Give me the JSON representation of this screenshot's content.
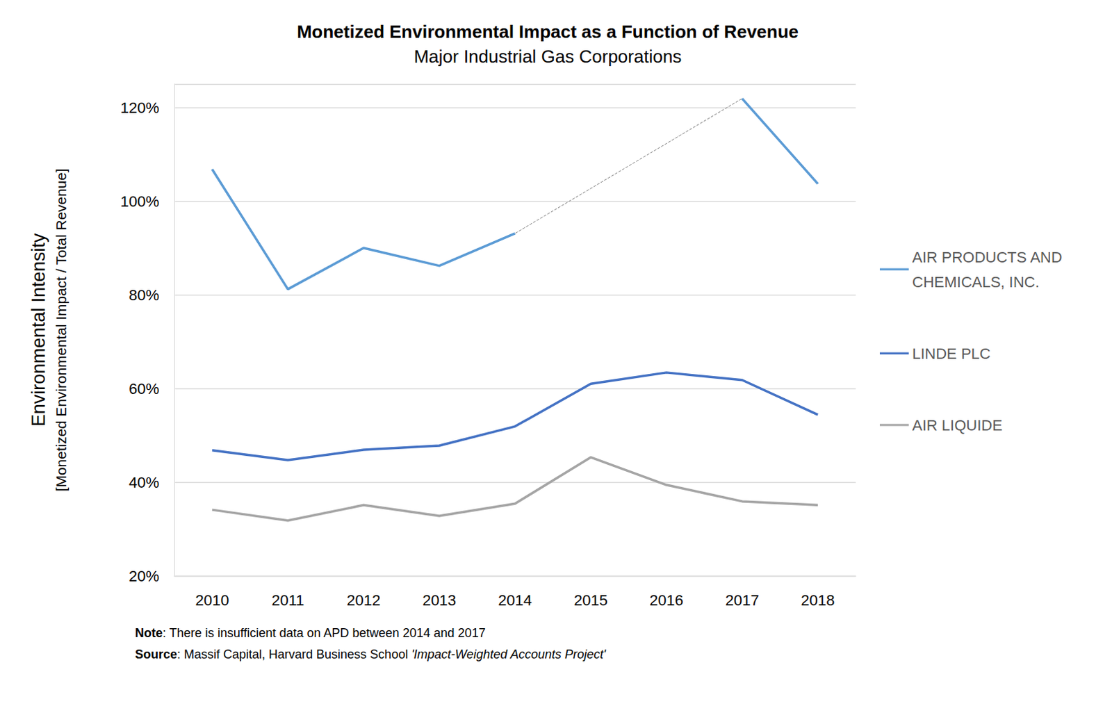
{
  "chart_data": {
    "type": "line",
    "title": "Monetized Environmental Impact as a Function of Revenue",
    "subtitle": "Major Industrial Gas Corporations",
    "y_label": [
      "Environmental Intensity",
      "[Monetized Environmental Impact / Total Revenue]"
    ],
    "categories": [
      "2010",
      "2011",
      "2012",
      "2013",
      "2014",
      "2015",
      "2016",
      "2017",
      "2018"
    ],
    "series": [
      {
        "name": "AIR PRODUCTS AND CHEMICALS, INC.",
        "color": "#5b9bd5",
        "values": [
          106.8,
          81.2,
          90.0,
          86.2,
          93.1,
          null,
          null,
          121.9,
          103.7
        ]
      },
      {
        "name": "LINDE PLC",
        "color": "#4472c4",
        "values": [
          46.8,
          44.7,
          46.9,
          47.8,
          51.9,
          61.0,
          63.4,
          61.8,
          54.4
        ]
      },
      {
        "name": "AIR LIQUIDE",
        "color": "#a5a5a5",
        "values": [
          34.1,
          31.8,
          35.1,
          32.8,
          35.4,
          45.3,
          39.4,
          35.9,
          35.1
        ]
      }
    ],
    "ylim": [
      20,
      125
    ],
    "yticks": [
      {
        "value": 20,
        "label": "20%"
      },
      {
        "value": 40,
        "label": "40%"
      },
      {
        "value": 60,
        "label": "60%"
      },
      {
        "value": 80,
        "label": "80%"
      },
      {
        "value": 100,
        "label": "100%"
      },
      {
        "value": 120,
        "label": "120%"
      }
    ],
    "grid": true,
    "legend": "right",
    "notes": [
      {
        "label": "Note",
        "text": ": There is insufficient data on APD between 2014 and 2017"
      },
      {
        "label": "Source",
        "text": ": Massif Capital, Harvard Business School ",
        "italic": "'Impact-Weighted Accounts Project'"
      }
    ]
  }
}
